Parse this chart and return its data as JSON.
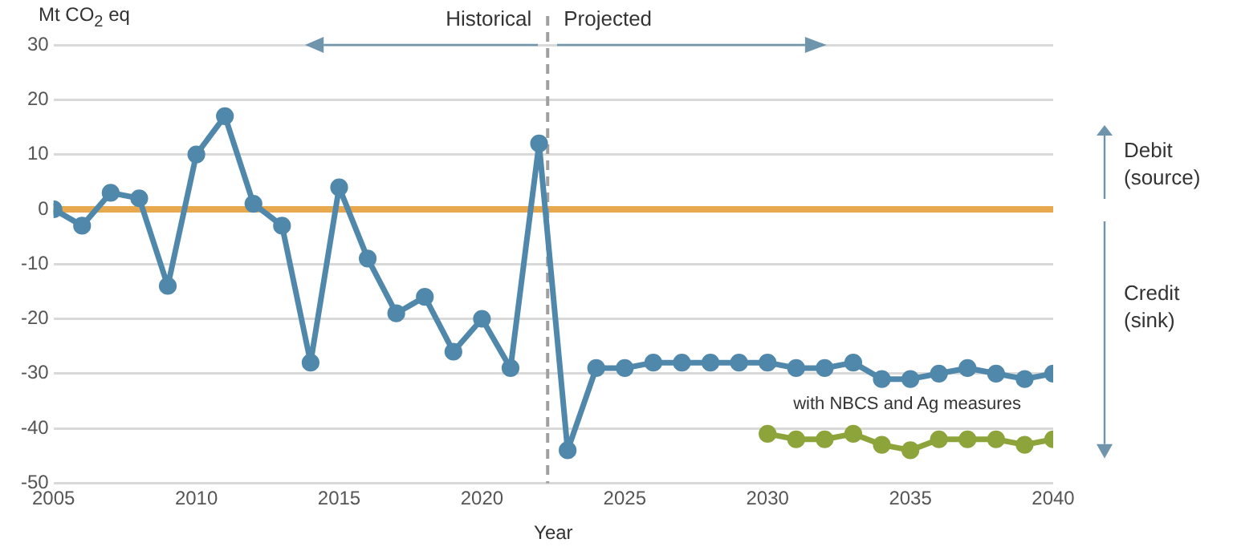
{
  "chart_data": {
    "type": "line",
    "ylabel": "Mt CO$_{2}$ eq",
    "xlabel": "Year",
    "xlim": [
      2005,
      2040
    ],
    "xticks": [
      2005,
      2010,
      2015,
      2020,
      2025,
      2030,
      2035,
      2040
    ],
    "ylim": [
      -50,
      30
    ],
    "yticks": [
      -50,
      -40,
      -30,
      -20,
      -10,
      0,
      10,
      20,
      30
    ],
    "grid": "y",
    "legend": false,
    "marker": "circle",
    "line_style": "solid",
    "series": [
      {
        "color": "#5088ab",
        "x": [
          2005,
          2006,
          2007,
          2008,
          2009,
          2010,
          2011,
          2012,
          2013,
          2014,
          2015,
          2016,
          2017,
          2018,
          2019,
          2020,
          2021,
          2022,
          2023,
          2024,
          2025,
          2026,
          2027,
          2028,
          2029,
          2030,
          2031,
          2032,
          2033,
          2034,
          2035,
          2036,
          2037,
          2038,
          2039,
          2040
        ],
        "values": [
          0,
          -3,
          3,
          2,
          -14,
          10,
          17,
          1,
          -3,
          -28,
          4,
          -9,
          -19,
          -16,
          -26,
          -20,
          -29,
          12,
          -44,
          -29,
          -29,
          -28,
          -28,
          -28,
          -28,
          -28,
          -29,
          -29,
          -28,
          -31,
          -31,
          -30,
          -29,
          -30,
          -31,
          -30
        ]
      },
      {
        "name": "with NBCS and Ag measures",
        "color": "#8ca43a",
        "x": [
          2030,
          2031,
          2032,
          2033,
          2034,
          2035,
          2036,
          2037,
          2038,
          2039,
          2040
        ],
        "values": [
          -41,
          -42,
          -42,
          -41,
          -43,
          -44,
          -42,
          -42,
          -42,
          -43,
          -42
        ]
      }
    ],
    "ref_lines": [
      {
        "axis": "y",
        "value": 0,
        "color": "#e8a94e",
        "line_style": "solid"
      },
      {
        "axis": "x",
        "value": 2022.3,
        "color": "#a0a0a0",
        "line_style": "dashed"
      }
    ],
    "annotations": [
      "Historical",
      "Projected",
      "Debit (source)",
      "Credit (sink)"
    ]
  }
}
